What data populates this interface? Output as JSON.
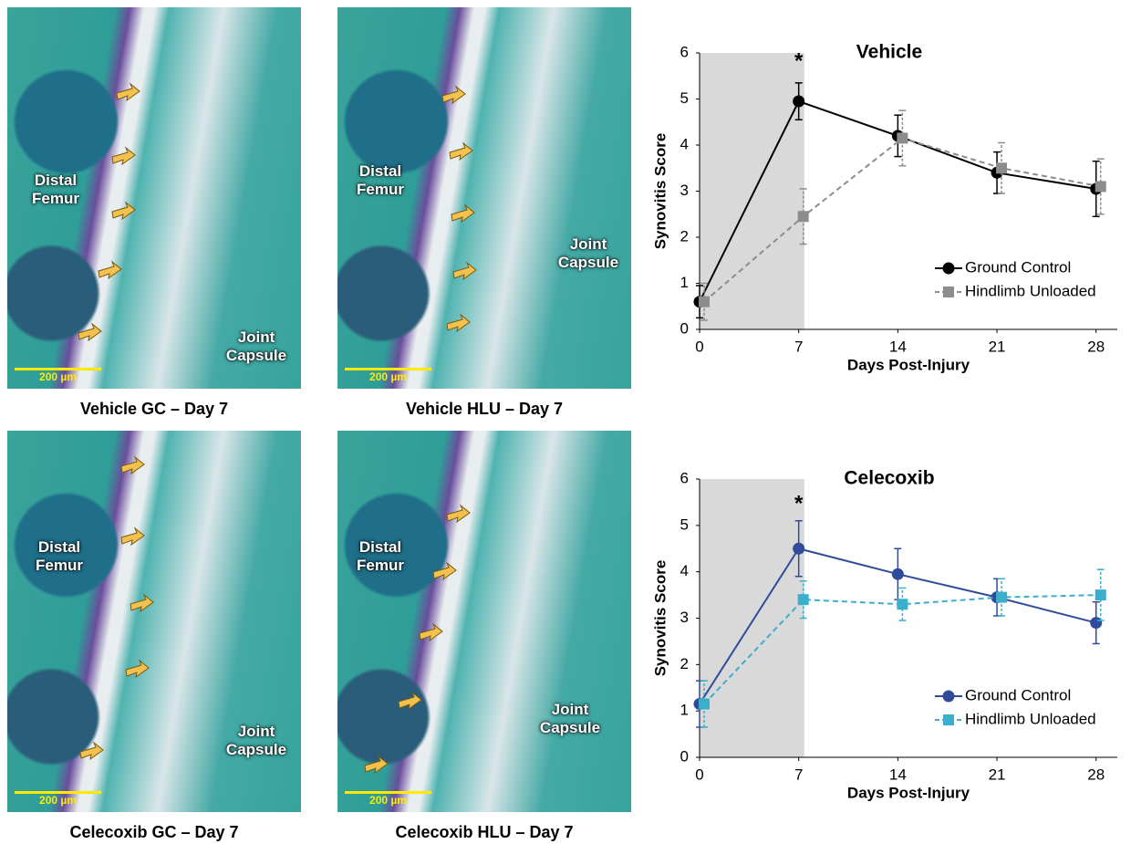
{
  "panels": [
    {
      "caption": "Vehicle GC – Day 7",
      "labels": [
        "Distal Femur",
        "Joint Capsule"
      ],
      "scale_bar": "200 µm"
    },
    {
      "caption": "Vehicle HLU – Day 7",
      "labels": [
        "Distal Femur",
        "Joint Capsule"
      ],
      "scale_bar": "200 µm"
    },
    {
      "caption": "Celecoxib GC – Day 7",
      "labels": [
        "Distal Femur",
        "Joint Capsule"
      ],
      "scale_bar": "200 µm"
    },
    {
      "caption": "Celecoxib HLU – Day 7",
      "labels": [
        "Distal Femur",
        "Joint Capsule"
      ],
      "scale_bar": "200 µm"
    }
  ],
  "chart_data": [
    {
      "type": "line",
      "title": "Vehicle",
      "xlabel": "Days Post-Injury",
      "ylabel": "Synovitis Score",
      "x": [
        0,
        7,
        14,
        21,
        28
      ],
      "xlim": [
        0,
        29.5
      ],
      "ylim": [
        0,
        6
      ],
      "xticks": [
        0,
        7,
        14,
        21,
        28
      ],
      "yticks": [
        0,
        1,
        2,
        3,
        4,
        5,
        6
      ],
      "shaded_x_range": [
        0,
        7.4
      ],
      "legend": "lower right",
      "annotations": [
        {
          "text": "*",
          "x": 7,
          "y": 5.8
        }
      ],
      "series": [
        {
          "name": "Ground Control",
          "color": "#000000",
          "marker": "circle",
          "dashed": false,
          "values": [
            0.6,
            4.95,
            4.2,
            3.4,
            3.05
          ],
          "errors": [
            0.35,
            0.4,
            0.45,
            0.45,
            0.6
          ]
        },
        {
          "name": "Hindlimb Unloaded",
          "color": "#8c8c8c",
          "marker": "square",
          "dashed": true,
          "values": [
            0.6,
            2.45,
            4.15,
            3.5,
            3.1
          ],
          "errors": [
            0.4,
            0.6,
            0.6,
            0.55,
            0.6
          ]
        }
      ]
    },
    {
      "type": "line",
      "title": "Celecoxib",
      "xlabel": "Days Post-Injury",
      "ylabel": "Synovitis Score",
      "x": [
        0,
        7,
        14,
        21,
        28
      ],
      "xlim": [
        0,
        29.5
      ],
      "ylim": [
        0,
        6
      ],
      "xticks": [
        0,
        7,
        14,
        21,
        28
      ],
      "yticks": [
        0,
        1,
        2,
        3,
        4,
        5,
        6
      ],
      "shaded_x_range": [
        0,
        7.4
      ],
      "legend": "lower right",
      "annotations": [
        {
          "text": "*",
          "x": 7,
          "y": 5.45
        }
      ],
      "series": [
        {
          "name": "Ground Control",
          "color": "#2f4b9a",
          "marker": "circle",
          "dashed": false,
          "values": [
            1.15,
            4.5,
            3.95,
            3.45,
            2.9
          ],
          "errors": [
            0.5,
            0.6,
            0.55,
            0.4,
            0.45
          ]
        },
        {
          "name": "Hindlimb Unloaded",
          "color": "#3aaecb",
          "marker": "square",
          "dashed": true,
          "values": [
            1.15,
            3.4,
            3.3,
            3.45,
            3.5
          ],
          "errors": [
            0.5,
            0.4,
            0.35,
            0.4,
            0.55
          ]
        }
      ]
    }
  ]
}
